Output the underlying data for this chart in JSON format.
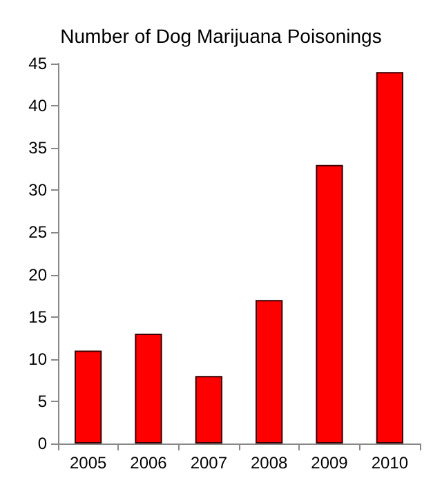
{
  "chart_data": {
    "type": "bar",
    "title": "Number of Dog Marijuana Poisonings",
    "categories": [
      "2005",
      "2006",
      "2007",
      "2008",
      "2009",
      "2010"
    ],
    "values": [
      11,
      13,
      8,
      17,
      33,
      44
    ],
    "color": "#ff0000",
    "ylim": [
      0,
      45
    ],
    "yticks": [
      0,
      5,
      10,
      15,
      20,
      25,
      30,
      35,
      40,
      45
    ],
    "grid": false
  }
}
